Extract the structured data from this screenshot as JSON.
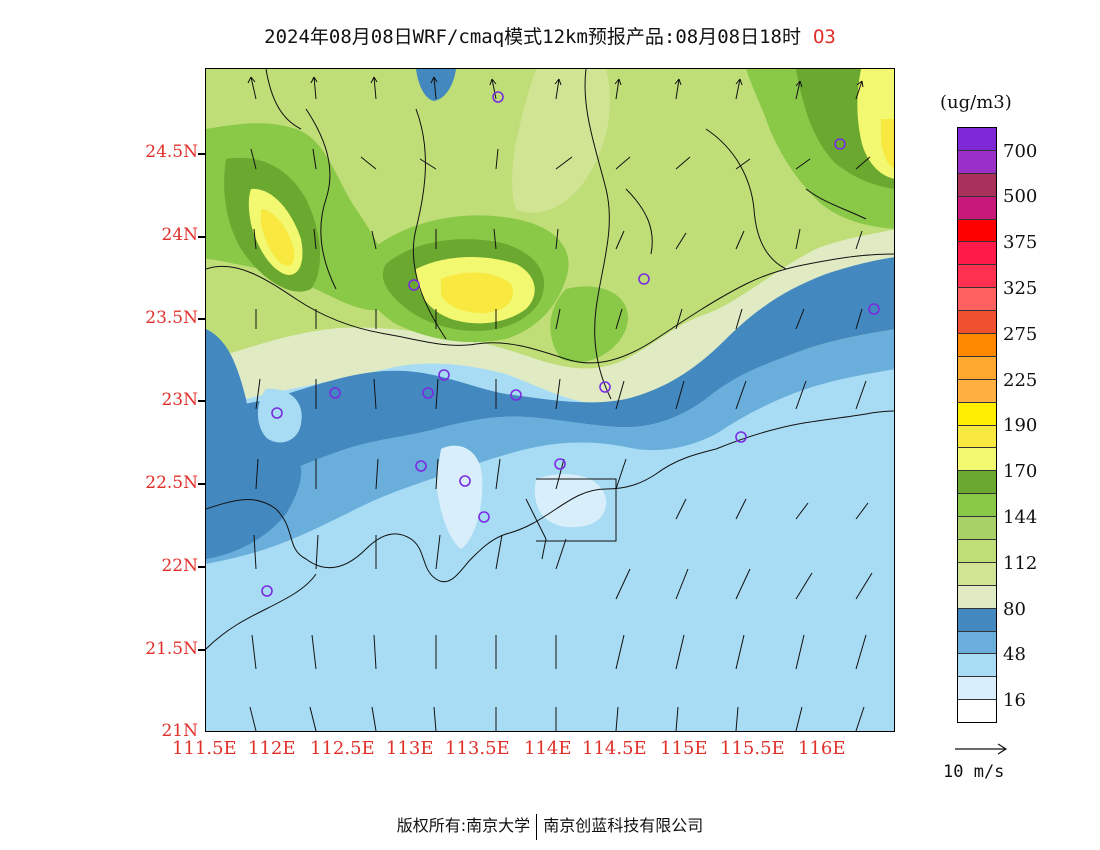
{
  "title": {
    "main": "2024年08月08日WRF/cmaq模式12km预报产品:08月08日18时",
    "species": "O3"
  },
  "axes": {
    "y_labels": [
      "24.5N",
      "24N",
      "23.5N",
      "23N",
      "22.5N",
      "22N",
      "21.5N",
      "21N"
    ],
    "x_labels": [
      "111.5E",
      "112E",
      "112.5E",
      "113E",
      "113.5E",
      "114E",
      "114.5E",
      "115E",
      "115.5E",
      "116E"
    ]
  },
  "legend": {
    "unit": "(ug/m3)",
    "colors": [
      "#7e28d8",
      "#9a30c8",
      "#a8305a",
      "#c8187a",
      "#ff0000",
      "#ff1a4a",
      "#ff3050",
      "#ff6060",
      "#f05030",
      "#ff8800",
      "#ffa830",
      "#ffb040",
      "#ffee00",
      "#f8e840",
      "#f2f870",
      "#6aa830",
      "#8ac848",
      "#a8d268",
      "#c0de78",
      "#d0e494",
      "#e0ebc4",
      "#4488c0",
      "#6aaedc",
      "#a8dcf4",
      "#d8eefa",
      "#ffffff"
    ],
    "labels": [
      "700",
      "500",
      "375",
      "325",
      "275",
      "225",
      "190",
      "170",
      "144",
      "112",
      "80",
      "48",
      "16"
    ],
    "vector_label": "10 m/s"
  },
  "footer": {
    "left": "版权所有:南京大学",
    "right": "南京创蓝科技有限公司"
  }
}
